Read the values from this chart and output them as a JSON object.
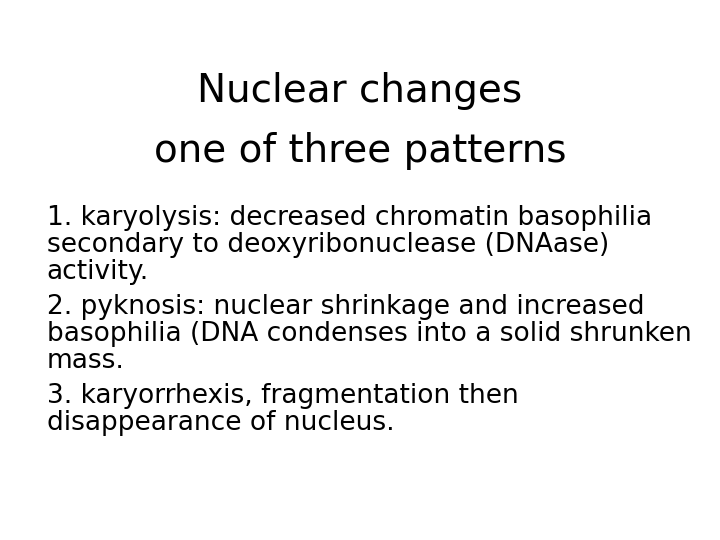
{
  "title_line1": "Nuclear changes",
  "title_line2": "one of three patterns",
  "title_fontsize": 28,
  "title_color": "#000000",
  "body_lines": [
    "1. karyolysis: decreased chromatin basophilia",
    "secondary to deoxyribonuclease (DNAase)",
    "activity.",
    "2. pyknosis: nuclear shrinkage and increased",
    "basophilia (DNA condenses into a solid shrunken",
    "mass.",
    "3. karyorrhexis, fragmentation then",
    "disappearance of nucleus."
  ],
  "body_fontsize": 19,
  "body_color": "#000000",
  "background_color": "#ffffff",
  "fig_width": 7.2,
  "fig_height": 5.4,
  "dpi": 100
}
